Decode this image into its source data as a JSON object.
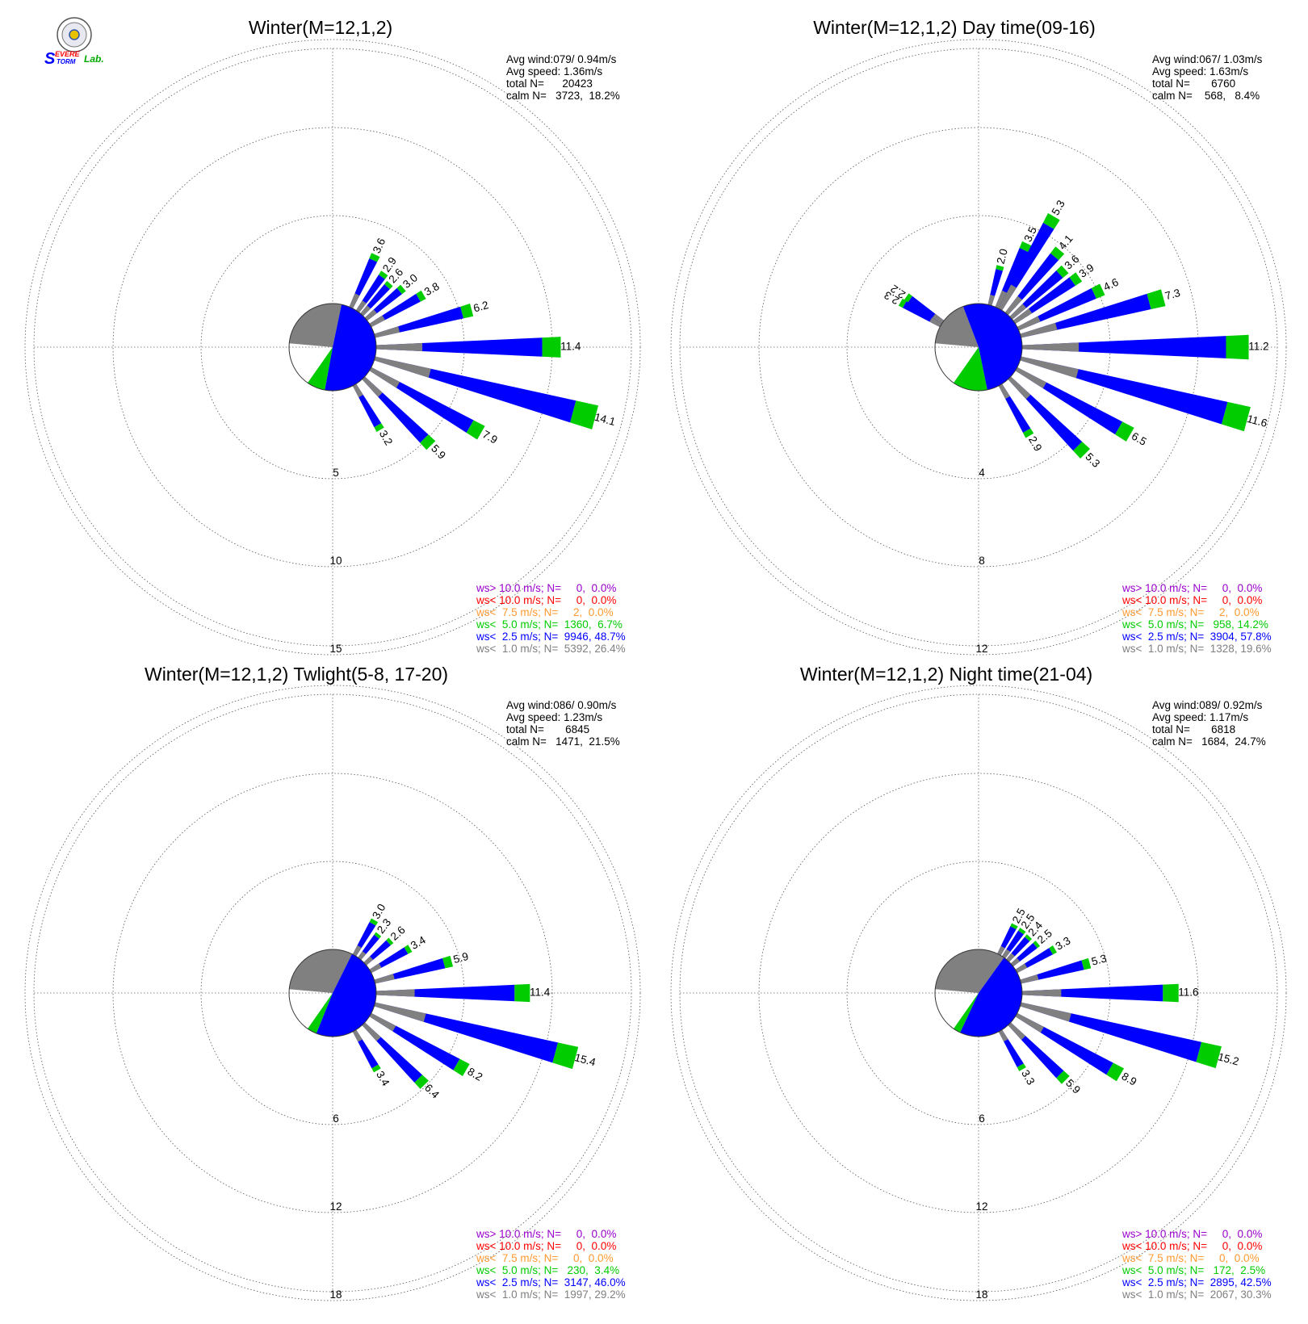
{
  "logo": {
    "text_s": "S",
    "text_evere": "EVERE",
    "text_torm": "TORM",
    "text_lab": "Lab."
  },
  "colors": {
    "purple": "#9900cc",
    "red": "#ff0000",
    "orange": "#ff9933",
    "green": "#00cc00",
    "blue": "#0000ff",
    "gray": "#808080"
  },
  "chart_data": [
    {
      "type": "wind-rose",
      "title": "Winter(M=12,1,2)",
      "stats": {
        "avg_wind": "Avg wind:079/ 0.94m/s",
        "avg_speed": "Avg speed: 1.36m/s",
        "total": "total N=      20423",
        "calm": "calm N=   3723,  18.2%"
      },
      "ring_labels": [
        "5",
        "10",
        "15"
      ],
      "ring_values": [
        5,
        10,
        15
      ],
      "legend": [
        "ws> 10.0 m/s; N=     0,  0.0%",
        "ws< 10.0 m/s; N=     0,  0.0%",
        "ws<  7.5 m/s; N=     2,  0.0%",
        "ws<  5.0 m/s; N=  1360,  6.7%",
        "ws<  2.5 m/s; N=  9946, 48.7%",
        "ws<  1.0 m/s; N=  5392, 26.4%"
      ],
      "calm_pie_percent": {
        "gray": 26.4,
        "blue": 48.7,
        "green": 6.7
      },
      "labeled_bars": [
        {
          "dir_deg": 25,
          "value": 3.6,
          "label": "3.6"
        },
        {
          "dir_deg": 35,
          "value": 2.9,
          "label": "2.9"
        },
        {
          "dir_deg": 42,
          "value": 2.6,
          "label": "2.6"
        },
        {
          "dir_deg": 50,
          "value": 3.0,
          "label": "3.0"
        },
        {
          "dir_deg": 60,
          "value": 3.8,
          "label": "3.8"
        },
        {
          "dir_deg": 75,
          "value": 6.2,
          "label": "6.2"
        },
        {
          "dir_deg": 90,
          "value": 11.4,
          "label": "11.4"
        },
        {
          "dir_deg": 105,
          "value": 14.1,
          "label": "14.1"
        },
        {
          "dir_deg": 120,
          "value": 7.9,
          "label": "7.9"
        },
        {
          "dir_deg": 135,
          "value": 5.9,
          "label": "5.9"
        },
        {
          "dir_deg": 150,
          "value": 3.2,
          "label": "3.2"
        }
      ]
    },
    {
      "type": "wind-rose",
      "title": "Winter(M=12,1,2) Day time(09-16)",
      "stats": {
        "avg_wind": "Avg wind:067/ 1.03m/s",
        "avg_speed": "Avg speed: 1.63m/s",
        "total": "total N=       6760",
        "calm": "calm N=    568,   8.4%"
      },
      "ring_labels": [
        "4",
        "8",
        "12"
      ],
      "ring_values": [
        4,
        8,
        12
      ],
      "legend": [
        "ws> 10.0 m/s; N=     0,  0.0%",
        "ws< 10.0 m/s; N=     0,  0.0%",
        "ws<  7.5 m/s; N=     2,  0.0%",
        "ws<  5.0 m/s; N=   958, 14.2%",
        "ws<  2.5 m/s; N=  3904, 57.8%",
        "ws<  1.0 m/s; N=  1328, 19.6%"
      ],
      "calm_pie_percent": {
        "gray": 19.6,
        "blue": 57.8,
        "green": 14.2
      },
      "labeled_bars": [
        {
          "dir_deg": 300,
          "value": 2.3,
          "label": "2.3"
        },
        {
          "dir_deg": 305,
          "value": 2.2,
          "label": "2.2"
        },
        {
          "dir_deg": 15,
          "value": 2.0,
          "label": "2.0"
        },
        {
          "dir_deg": 25,
          "value": 3.5,
          "label": "3.5"
        },
        {
          "dir_deg": 30,
          "value": 5.3,
          "label": "5.3"
        },
        {
          "dir_deg": 40,
          "value": 4.1,
          "label": "4.1"
        },
        {
          "dir_deg": 48,
          "value": 3.6,
          "label": "3.6"
        },
        {
          "dir_deg": 55,
          "value": 3.9,
          "label": "3.9"
        },
        {
          "dir_deg": 65,
          "value": 4.6,
          "label": "4.6"
        },
        {
          "dir_deg": 75,
          "value": 7.3,
          "label": "7.3"
        },
        {
          "dir_deg": 90,
          "value": 11.2,
          "label": "11.2"
        },
        {
          "dir_deg": 105,
          "value": 11.6,
          "label": "11.6"
        },
        {
          "dir_deg": 120,
          "value": 6.5,
          "label": "6.5"
        },
        {
          "dir_deg": 135,
          "value": 5.3,
          "label": "5.3"
        },
        {
          "dir_deg": 150,
          "value": 2.9,
          "label": "2.9"
        }
      ]
    },
    {
      "type": "wind-rose",
      "title": "Winter(M=12,1,2) Twlight(5-8, 17-20)",
      "stats": {
        "avg_wind": "Avg wind:086/ 0.90m/s",
        "avg_speed": "Avg speed: 1.23m/s",
        "total": "total N=       6845",
        "calm": "calm N=   1471,  21.5%"
      },
      "ring_labels": [
        "6",
        "12",
        "18"
      ],
      "ring_values": [
        6,
        12,
        18
      ],
      "legend": [
        "ws> 10.0 m/s; N=     0,  0.0%",
        "ws< 10.0 m/s; N=     0,  0.0%",
        "ws<  7.5 m/s; N=     0,  0.0%",
        "ws<  5.0 m/s; N=   230,  3.4%",
        "ws<  2.5 m/s; N=  3147, 46.0%",
        "ws<  1.0 m/s; N=  1997, 29.2%"
      ],
      "calm_pie_percent": {
        "gray": 29.2,
        "blue": 46.0,
        "green": 3.4
      },
      "labeled_bars": [
        {
          "dir_deg": 30,
          "value": 3.0,
          "label": "3.0"
        },
        {
          "dir_deg": 38,
          "value": 2.3,
          "label": "2.3"
        },
        {
          "dir_deg": 48,
          "value": 2.6,
          "label": "2.6"
        },
        {
          "dir_deg": 60,
          "value": 3.4,
          "label": "3.4"
        },
        {
          "dir_deg": 75,
          "value": 5.9,
          "label": "5.9"
        },
        {
          "dir_deg": 90,
          "value": 11.4,
          "label": "11.4"
        },
        {
          "dir_deg": 105,
          "value": 15.4,
          "label": "15.4"
        },
        {
          "dir_deg": 120,
          "value": 8.2,
          "label": "8.2"
        },
        {
          "dir_deg": 135,
          "value": 6.4,
          "label": "6.4"
        },
        {
          "dir_deg": 150,
          "value": 3.4,
          "label": "3.4"
        }
      ]
    },
    {
      "type": "wind-rose",
      "title": "Winter(M=12,1,2) Night time(21-04)",
      "stats": {
        "avg_wind": "Avg wind:089/ 0.92m/s",
        "avg_speed": "Avg speed: 1.17m/s",
        "total": "total N=       6818",
        "calm": "calm N=   1684,  24.7%"
      },
      "ring_labels": [
        "6",
        "12",
        "18"
      ],
      "ring_values": [
        6,
        12,
        18
      ],
      "legend": [
        "ws> 10.0 m/s; N=     0,  0.0%",
        "ws< 10.0 m/s; N=     0,  0.0%",
        "ws<  7.5 m/s; N=     0,  0.0%",
        "ws<  5.0 m/s; N=   172,  2.5%",
        "ws<  2.5 m/s; N=  2895, 42.5%",
        "ws<  1.0 m/s; N=  2067, 30.3%"
      ],
      "calm_pie_percent": {
        "gray": 30.3,
        "blue": 42.5,
        "green": 2.5
      },
      "labeled_bars": [
        {
          "dir_deg": 28,
          "value": 2.5,
          "label": "2.5"
        },
        {
          "dir_deg": 35,
          "value": 2.5,
          "label": "2.5"
        },
        {
          "dir_deg": 42,
          "value": 2.4,
          "label": "2.4"
        },
        {
          "dir_deg": 50,
          "value": 2.5,
          "label": "2.5"
        },
        {
          "dir_deg": 60,
          "value": 3.3,
          "label": "3.3"
        },
        {
          "dir_deg": 75,
          "value": 5.3,
          "label": "5.3"
        },
        {
          "dir_deg": 90,
          "value": 11.6,
          "label": "11.6"
        },
        {
          "dir_deg": 105,
          "value": 15.2,
          "label": "15.2"
        },
        {
          "dir_deg": 120,
          "value": 8.9,
          "label": "8.9"
        },
        {
          "dir_deg": 135,
          "value": 5.9,
          "label": "5.9"
        },
        {
          "dir_deg": 150,
          "value": 3.3,
          "label": "3.3"
        }
      ]
    }
  ]
}
